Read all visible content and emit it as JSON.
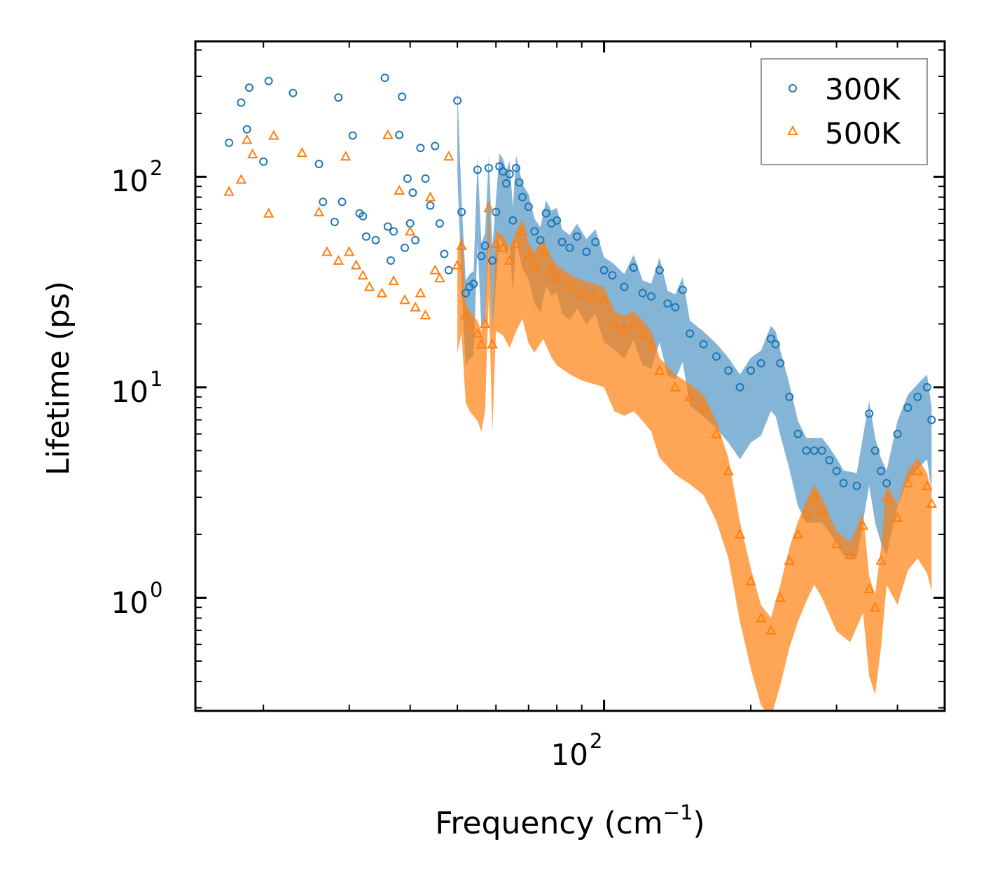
{
  "chart_data": {
    "type": "scatter",
    "title": "",
    "xlabel": "Frequency (cm",
    "xlabel_sup": "−1",
    "xlabel_close": ")",
    "ylabel": "Lifetime (ps)",
    "xscale": "log",
    "yscale": "log",
    "xlim": [
      14.5,
      500
    ],
    "ylim": [
      0.29,
      440
    ],
    "x_ticks": [
      {
        "value": 100,
        "base": "10",
        "exp": "2"
      }
    ],
    "y_ticks": [
      {
        "value": 1,
        "base": "10",
        "exp": "0"
      },
      {
        "value": 10,
        "base": "10",
        "exp": "1"
      },
      {
        "value": 100,
        "base": "10",
        "exp": "2"
      }
    ],
    "legend": {
      "position": "top-right",
      "entries": [
        "300K",
        "500K"
      ]
    },
    "series": [
      {
        "name": "300K",
        "marker": "circle-open",
        "color": "#1f77b4",
        "points": [
          [
            17,
            145
          ],
          [
            18,
            225
          ],
          [
            18.5,
            168
          ],
          [
            18.7,
            265
          ],
          [
            20,
            118
          ],
          [
            20.5,
            285
          ],
          [
            23,
            250
          ],
          [
            26,
            115
          ],
          [
            26.5,
            76
          ],
          [
            28,
            61
          ],
          [
            28.5,
            238
          ],
          [
            29,
            76
          ],
          [
            30.5,
            157
          ],
          [
            31.5,
            67
          ],
          [
            32,
            65
          ],
          [
            32.5,
            52
          ],
          [
            34,
            50
          ],
          [
            35.5,
            295
          ],
          [
            36,
            58
          ],
          [
            36.5,
            40
          ],
          [
            37,
            55
          ],
          [
            38,
            158
          ],
          [
            38.5,
            240
          ],
          [
            39,
            46
          ],
          [
            39.5,
            98
          ],
          [
            40,
            60
          ],
          [
            40.5,
            84
          ],
          [
            41,
            50
          ],
          [
            42,
            137
          ],
          [
            43,
            98
          ],
          [
            44,
            73
          ],
          [
            45,
            140
          ],
          [
            46,
            60
          ],
          [
            47,
            43
          ],
          [
            48,
            36
          ],
          [
            50,
            230
          ],
          [
            51,
            68
          ],
          [
            52,
            28
          ],
          [
            53,
            30
          ],
          [
            54,
            31
          ],
          [
            55,
            108
          ],
          [
            56,
            42
          ],
          [
            57,
            47
          ],
          [
            58,
            110
          ],
          [
            59,
            40
          ],
          [
            60,
            68
          ],
          [
            61,
            112
          ],
          [
            62,
            106
          ],
          [
            63,
            93
          ],
          [
            64,
            103
          ],
          [
            65,
            62
          ],
          [
            66,
            110
          ],
          [
            67,
            94
          ],
          [
            68,
            80
          ],
          [
            70,
            72
          ],
          [
            72,
            55
          ],
          [
            74,
            50
          ],
          [
            76,
            67
          ],
          [
            78,
            60
          ],
          [
            80,
            62
          ],
          [
            82,
            49
          ],
          [
            85,
            46
          ],
          [
            88,
            52
          ],
          [
            92,
            44
          ],
          [
            96,
            49
          ],
          [
            100,
            36
          ],
          [
            104,
            34
          ],
          [
            110,
            30
          ],
          [
            115,
            37
          ],
          [
            120,
            28
          ],
          [
            125,
            27
          ],
          [
            130,
            36
          ],
          [
            135,
            25
          ],
          [
            140,
            24
          ],
          [
            145,
            29
          ],
          [
            150,
            18
          ],
          [
            160,
            16
          ],
          [
            170,
            14
          ],
          [
            180,
            12
          ],
          [
            190,
            10
          ],
          [
            200,
            12
          ],
          [
            210,
            13
          ],
          [
            220,
            17
          ],
          [
            225,
            16
          ],
          [
            230,
            13
          ],
          [
            240,
            9
          ],
          [
            250,
            6
          ],
          [
            260,
            5
          ],
          [
            270,
            5
          ],
          [
            280,
            5
          ],
          [
            290,
            4.5
          ],
          [
            300,
            4
          ],
          [
            310,
            3.5
          ],
          [
            330,
            3.4
          ],
          [
            350,
            7.5
          ],
          [
            360,
            5
          ],
          [
            370,
            4
          ],
          [
            380,
            3.5
          ],
          [
            400,
            6
          ],
          [
            420,
            8
          ],
          [
            440,
            9
          ],
          [
            460,
            10
          ],
          [
            470,
            7
          ]
        ]
      },
      {
        "name": "500K",
        "marker": "triangle-open",
        "color": "#ff7f0e",
        "points": [
          [
            17,
            85
          ],
          [
            18,
            97
          ],
          [
            18.5,
            150
          ],
          [
            19,
            128
          ],
          [
            20.5,
            67
          ],
          [
            21,
            157
          ],
          [
            24,
            130
          ],
          [
            26,
            68
          ],
          [
            27,
            44
          ],
          [
            28.5,
            40
          ],
          [
            29.5,
            125
          ],
          [
            30,
            44
          ],
          [
            31,
            38
          ],
          [
            32,
            34
          ],
          [
            33,
            30
          ],
          [
            35,
            28
          ],
          [
            36,
            158
          ],
          [
            37,
            32
          ],
          [
            38,
            86
          ],
          [
            39,
            26
          ],
          [
            40,
            55
          ],
          [
            41,
            24
          ],
          [
            42,
            28
          ],
          [
            43,
            22
          ],
          [
            44,
            80
          ],
          [
            45,
            36
          ],
          [
            46,
            33
          ],
          [
            48,
            125
          ],
          [
            50,
            38
          ],
          [
            51,
            47
          ],
          [
            52,
            22
          ],
          [
            53,
            20
          ],
          [
            55,
            18
          ],
          [
            56,
            16
          ],
          [
            57,
            20
          ],
          [
            58,
            71
          ],
          [
            59,
            16
          ],
          [
            60,
            48
          ],
          [
            62,
            46
          ],
          [
            64,
            40
          ],
          [
            66,
            48
          ],
          [
            68,
            55
          ],
          [
            70,
            42
          ],
          [
            72,
            38
          ],
          [
            75,
            44
          ],
          [
            78,
            36
          ],
          [
            80,
            33
          ],
          [
            85,
            30
          ],
          [
            90,
            28
          ],
          [
            95,
            27
          ],
          [
            100,
            26
          ],
          [
            105,
            20
          ],
          [
            110,
            19
          ],
          [
            115,
            20
          ],
          [
            120,
            18
          ],
          [
            125,
            16
          ],
          [
            130,
            12
          ],
          [
            140,
            10
          ],
          [
            150,
            9
          ],
          [
            160,
            8
          ],
          [
            170,
            6
          ],
          [
            180,
            4
          ],
          [
            190,
            2
          ],
          [
            200,
            1.2
          ],
          [
            210,
            0.8
          ],
          [
            220,
            0.7
          ],
          [
            230,
            1
          ],
          [
            240,
            1.5
          ],
          [
            250,
            2
          ],
          [
            260,
            2.5
          ],
          [
            270,
            3
          ],
          [
            280,
            2.6
          ],
          [
            300,
            1.8
          ],
          [
            320,
            1.6
          ],
          [
            340,
            2.2
          ],
          [
            350,
            1.1
          ],
          [
            360,
            0.9
          ],
          [
            370,
            1.5
          ],
          [
            380,
            3
          ],
          [
            400,
            2.4
          ],
          [
            420,
            3.5
          ],
          [
            440,
            4
          ],
          [
            460,
            3.4
          ],
          [
            470,
            2.8
          ]
        ]
      }
    ]
  }
}
